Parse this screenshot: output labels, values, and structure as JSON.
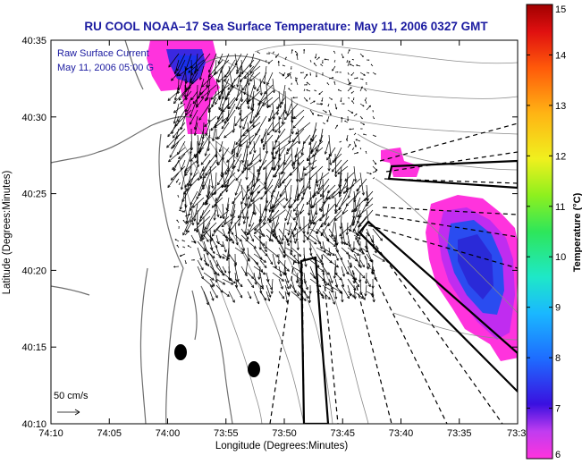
{
  "map": {
    "title": "RU COOL  NOAA–17  Sea Surface Temperature:  May 11, 2006 0327 GMT",
    "overlay_line1": "Raw Surface Current",
    "overlay_line2": "May 11, 2006 05:00 G",
    "scale_label": "50 cm/s",
    "xlabel": "Longitude (Degrees:Minutes)",
    "ylabel": "Latitude (Degrees:Minutes)",
    "x_ticks": [
      "74:10",
      "74:05",
      "74:00",
      "73:55",
      "73:50",
      "73:45",
      "73:40",
      "73:35",
      "73:3"
    ],
    "y_ticks": [
      "40:35",
      "40:30",
      "40:25",
      "40:20",
      "40:15",
      "40:10"
    ],
    "colorbar": {
      "label": "Temperature (°C)",
      "ticks": [
        "15",
        "14",
        "13",
        "12",
        "11",
        "10",
        "9",
        "8",
        "7",
        "6"
      ],
      "min": 6,
      "max": 15
    },
    "colors": {
      "title": "#1a1aa0",
      "sst_cold": "#2a2ad8",
      "sst_warm": "#ff33dd"
    }
  }
}
